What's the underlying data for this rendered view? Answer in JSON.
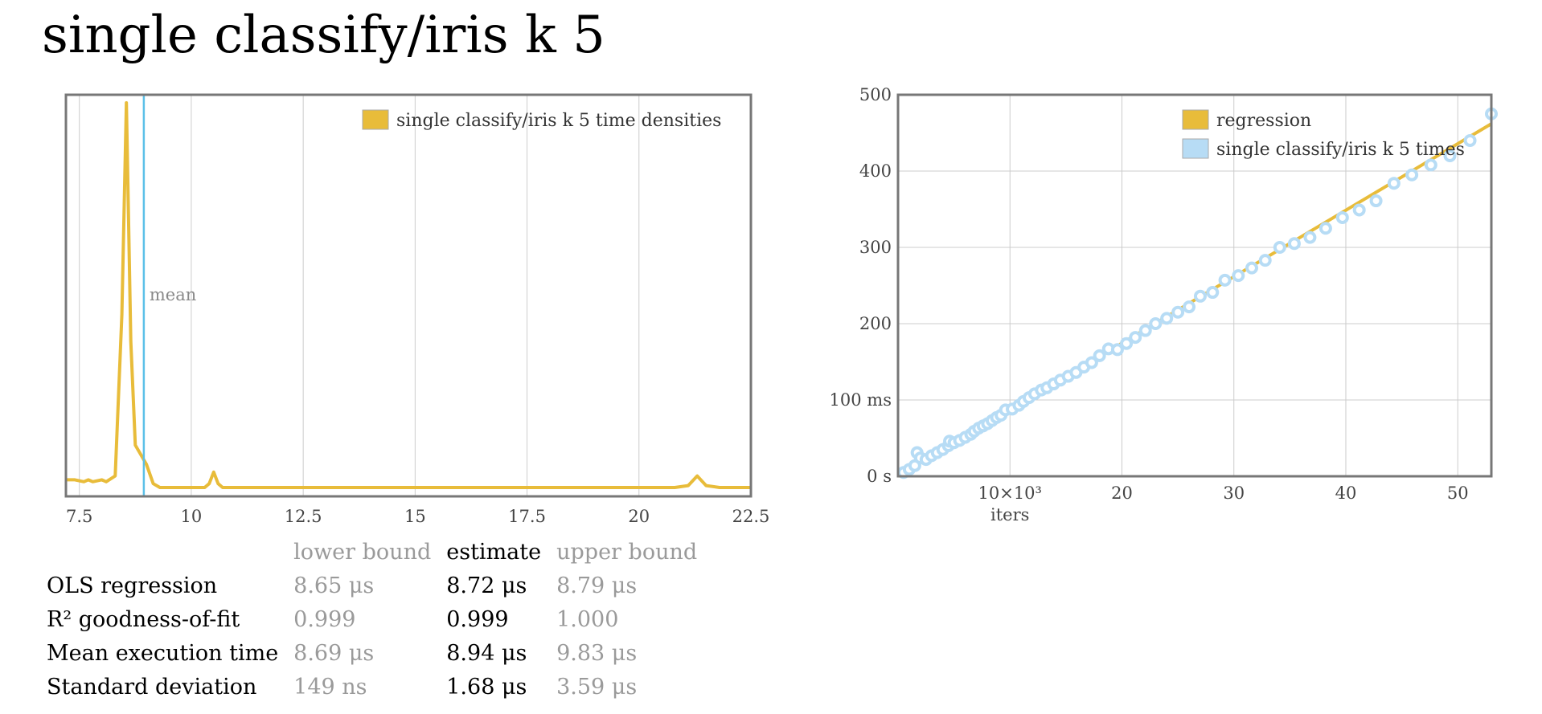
{
  "page": {
    "title": "single classify/iris k 5"
  },
  "colors": {
    "density": "#e8bc3a",
    "mean_line": "#5bc0e8",
    "regression": "#e8bc3a",
    "points": "#b7dcf5",
    "points_fill": "#ffffff",
    "frame": "#777777",
    "grid": "#cccccc"
  },
  "chart_data": [
    {
      "type": "line",
      "legend": [
        "single classify/iris k 5 time densities"
      ],
      "legend_position": "top-right",
      "grid": true,
      "xlim": [
        7.2,
        22.5
      ],
      "ylim": [
        0,
        1
      ],
      "xticks": [
        7.5,
        10,
        12.5,
        15,
        17.5,
        20,
        22.5
      ],
      "xtick_labels": [
        "7.5",
        "10",
        "12.5",
        "15",
        "17.5",
        "20",
        "22.5"
      ],
      "series": [
        {
          "name": "single classify/iris k 5 time densities",
          "x": [
            7.2,
            7.4,
            7.6,
            7.7,
            7.8,
            8.0,
            8.1,
            8.3,
            8.45,
            8.55,
            8.65,
            8.75,
            8.85,
            9.0,
            9.15,
            9.3,
            9.5,
            10.0,
            10.3,
            10.4,
            10.5,
            10.6,
            10.7,
            11.0,
            13.0,
            15.0,
            17.0,
            19.0,
            20.8,
            21.1,
            21.3,
            21.5,
            21.8,
            22.5
          ],
          "y": [
            0.02,
            0.02,
            0.015,
            0.02,
            0.015,
            0.02,
            0.015,
            0.03,
            0.45,
            1.0,
            0.38,
            0.11,
            0.09,
            0.06,
            0.01,
            0.0,
            0.0,
            0.0,
            0.0,
            0.01,
            0.04,
            0.01,
            0.0,
            0.0,
            0.0,
            0.0,
            0.0,
            0.0,
            0.0,
            0.005,
            0.03,
            0.005,
            0.0,
            0.0
          ]
        }
      ],
      "annotations": [
        {
          "label": "mean",
          "x": 8.94
        }
      ]
    },
    {
      "type": "scatter",
      "legend": [
        "regression",
        "single classify/iris k 5 times"
      ],
      "legend_position": "top-right",
      "grid": true,
      "xlabel": "iters",
      "xlim": [
        0,
        53
      ],
      "ylim": [
        0,
        500
      ],
      "xticks": [
        10,
        20,
        30,
        40,
        50
      ],
      "xtick_labels": [
        "10×10³",
        "20",
        "30",
        "40",
        "50"
      ],
      "yticks": [
        0,
        100,
        200,
        300,
        400,
        500
      ],
      "ytick_labels": [
        "0 s",
        "100 ms",
        "200",
        "300",
        "400",
        "500"
      ],
      "series": [
        {
          "name": "regression",
          "x": [
            0,
            53
          ],
          "y": [
            0,
            462
          ]
        },
        {
          "name": "single classify/iris k 5 times",
          "x": [
            0.5,
            1.0,
            1.5,
            1.7,
            2.0,
            2.5,
            3.0,
            3.5,
            4.0,
            4.5,
            4.6,
            5.0,
            5.5,
            6.0,
            6.5,
            6.8,
            7.2,
            7.6,
            8.0,
            8.4,
            8.8,
            9.2,
            9.6,
            10.2,
            10.8,
            11.2,
            11.7,
            12.2,
            12.8,
            13.3,
            13.9,
            14.5,
            15.2,
            15.9,
            16.6,
            17.3,
            18.0,
            18.8,
            19.6,
            20.4,
            21.2,
            22.1,
            23.0,
            24.0,
            25.0,
            26.0,
            27.0,
            28.1,
            29.2,
            30.4,
            31.6,
            32.8,
            34.1,
            35.4,
            36.8,
            38.2,
            39.7,
            41.2,
            42.7,
            44.3,
            45.9,
            47.6,
            49.3,
            51.1,
            53.0
          ],
          "y": [
            5,
            9,
            14,
            31,
            24,
            22,
            27,
            31,
            35,
            40,
            46,
            44,
            47,
            51,
            55,
            59,
            63,
            66,
            69,
            73,
            77,
            80,
            87,
            88,
            93,
            98,
            103,
            108,
            113,
            116,
            121,
            126,
            131,
            136,
            143,
            149,
            158,
            167,
            166,
            174,
            182,
            191,
            200,
            207,
            215,
            222,
            236,
            241,
            257,
            263,
            273,
            283,
            300,
            305,
            313,
            325,
            339,
            349,
            361,
            384,
            395,
            408,
            420,
            440,
            475
          ]
        }
      ]
    }
  ],
  "stats": {
    "headers": [
      "",
      "lower bound",
      "estimate",
      "upper bound"
    ],
    "rows": [
      {
        "label": "OLS regression",
        "lower": "8.65 μs",
        "estimate": "8.72 μs",
        "upper": "8.79 μs"
      },
      {
        "label": "R² goodness-of-fit",
        "lower": "0.999",
        "estimate": "0.999",
        "upper": "1.000"
      },
      {
        "label": "Mean execution time",
        "lower": "8.69 μs",
        "estimate": "8.94 μs",
        "upper": "9.83 μs"
      },
      {
        "label": "Standard deviation",
        "lower": "149 ns",
        "estimate": "1.68 μs",
        "upper": "3.59 μs"
      }
    ]
  }
}
